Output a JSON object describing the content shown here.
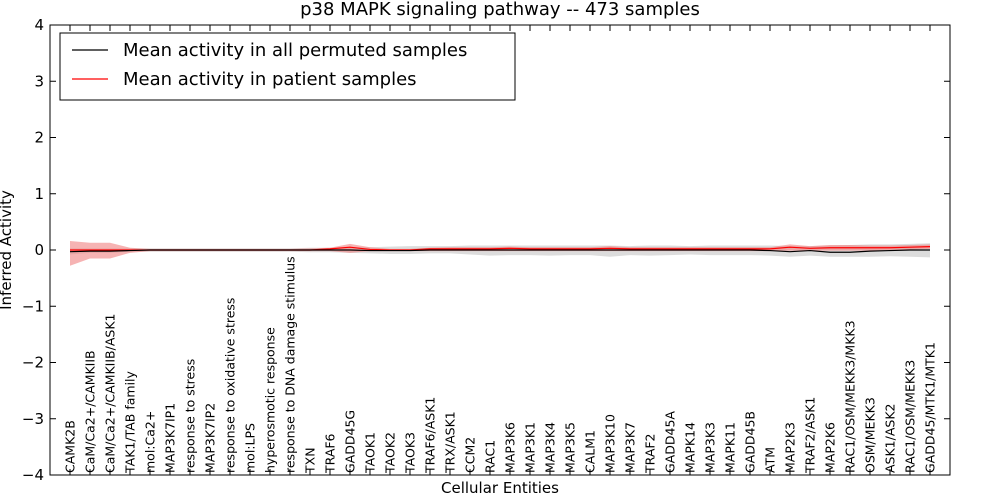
{
  "chart_data": {
    "type": "line",
    "title": "p38 MAPK signaling pathway -- 473 samples",
    "xlabel": "Cellular Entities",
    "ylabel": "Inferred Activity",
    "ylim": [
      -4,
      4
    ],
    "yticks": [
      "4",
      "3",
      "2",
      "1",
      "0",
      "−1",
      "−2",
      "−3",
      "−4"
    ],
    "legend_position": "top-left",
    "grid": false,
    "categories": [
      "CAMK2B",
      "CaM/Ca2+/CAMKIIB",
      "CaM/Ca2+/CAMKIIB/ASK1",
      "TAK1/TAB family",
      "mol:Ca2+",
      "MAP3K7IP1",
      "response to stress",
      "MAP3K7IP2",
      "response to oxidative stress",
      "mol:LPS",
      "hyperosmotic response",
      "response to DNA damage stimulus",
      "TXN",
      "TRAF6",
      "GADD45G",
      "TAOK1",
      "TAOK2",
      "TAOK3",
      "TRAF6/ASK1",
      "TRX/ASK1",
      "CCM2",
      "RAC1",
      "MAP3K6",
      "MAP3K1",
      "MAP3K4",
      "MAP3K5",
      "CALM1",
      "MAP3K10",
      "MAP3K7",
      "TRAF2",
      "GADD45A",
      "MAPK14",
      "MAP3K3",
      "MAPK11",
      "GADD45B",
      "ATM",
      "MAP2K3",
      "TRAF2/ASK1",
      "MAP2K6",
      "RAC1/OSM/MEKK3/MKK3",
      "OSM/MEKK3",
      "ASK1/ASK2",
      "RAC1/OSM/MEKK3",
      "GADD45/MTK1/MTK1"
    ],
    "series": [
      {
        "name": "Mean activity in all permuted samples",
        "color": "#000000",
        "band_color": "#c0c0c0",
        "values": [
          -0.03,
          -0.02,
          -0.02,
          -0.01,
          0.0,
          0.0,
          0.0,
          0.0,
          0.0,
          0.0,
          0.0,
          0.0,
          0.0,
          0.0,
          0.0,
          -0.01,
          -0.01,
          -0.01,
          0.0,
          0.0,
          0.0,
          0.0,
          0.0,
          0.0,
          0.0,
          0.0,
          0.0,
          0.0,
          0.0,
          0.0,
          0.0,
          0.0,
          0.0,
          0.0,
          0.0,
          -0.01,
          -0.03,
          -0.01,
          -0.04,
          -0.04,
          -0.02,
          -0.01,
          0.0,
          0.0
        ],
        "lower": [
          -0.08,
          -0.05,
          -0.05,
          -0.03,
          -0.03,
          -0.03,
          -0.03,
          -0.03,
          -0.03,
          -0.03,
          -0.03,
          -0.03,
          -0.04,
          -0.04,
          -0.05,
          -0.06,
          -0.07,
          -0.07,
          -0.06,
          -0.06,
          -0.08,
          -0.1,
          -0.09,
          -0.09,
          -0.1,
          -0.09,
          -0.09,
          -0.12,
          -0.09,
          -0.1,
          -0.09,
          -0.08,
          -0.09,
          -0.09,
          -0.09,
          -0.1,
          -0.12,
          -0.1,
          -0.12,
          -0.12,
          -0.12,
          -0.11,
          -0.12,
          -0.13
        ],
        "upper": [
          0.03,
          0.03,
          0.03,
          0.03,
          0.03,
          0.03,
          0.03,
          0.03,
          0.03,
          0.03,
          0.03,
          0.03,
          0.04,
          0.04,
          0.04,
          0.05,
          0.06,
          0.07,
          0.07,
          0.07,
          0.08,
          0.08,
          0.08,
          0.08,
          0.08,
          0.08,
          0.08,
          0.08,
          0.07,
          0.08,
          0.08,
          0.07,
          0.08,
          0.08,
          0.08,
          0.08,
          0.07,
          0.07,
          0.08,
          0.09,
          0.1,
          0.1,
          0.11,
          0.12
        ]
      },
      {
        "name": "Mean activity in patient samples",
        "color": "#ff0000",
        "band_color": "#f08080",
        "values": [
          0.0,
          0.0,
          0.0,
          0.0,
          0.0,
          0.0,
          0.0,
          0.0,
          0.0,
          0.0,
          0.0,
          0.0,
          0.0,
          0.02,
          0.05,
          0.01,
          0.0,
          0.0,
          0.02,
          0.02,
          0.02,
          0.02,
          0.03,
          0.02,
          0.02,
          0.02,
          0.02,
          0.03,
          0.02,
          0.02,
          0.02,
          0.02,
          0.02,
          0.02,
          0.02,
          0.02,
          0.05,
          0.03,
          0.04,
          0.04,
          0.04,
          0.04,
          0.05,
          0.06
        ],
        "lower": [
          -0.28,
          -0.15,
          -0.15,
          -0.05,
          -0.02,
          -0.02,
          -0.02,
          -0.02,
          -0.02,
          -0.02,
          -0.02,
          -0.02,
          -0.02,
          -0.02,
          -0.05,
          -0.02,
          -0.02,
          -0.02,
          -0.02,
          -0.02,
          -0.02,
          -0.02,
          -0.02,
          -0.02,
          -0.02,
          -0.02,
          -0.02,
          -0.02,
          -0.02,
          -0.02,
          -0.02,
          -0.02,
          -0.02,
          -0.02,
          -0.02,
          -0.02,
          -0.01,
          -0.01,
          -0.01,
          -0.01,
          -0.01,
          0.0,
          0.01,
          0.02
        ],
        "upper": [
          0.16,
          0.13,
          0.13,
          0.04,
          0.02,
          0.02,
          0.02,
          0.02,
          0.02,
          0.02,
          0.02,
          0.02,
          0.03,
          0.04,
          0.11,
          0.05,
          0.02,
          0.02,
          0.04,
          0.05,
          0.05,
          0.05,
          0.06,
          0.05,
          0.05,
          0.05,
          0.05,
          0.07,
          0.05,
          0.05,
          0.05,
          0.05,
          0.05,
          0.05,
          0.05,
          0.05,
          0.1,
          0.07,
          0.09,
          0.09,
          0.08,
          0.08,
          0.09,
          0.1
        ]
      }
    ]
  }
}
